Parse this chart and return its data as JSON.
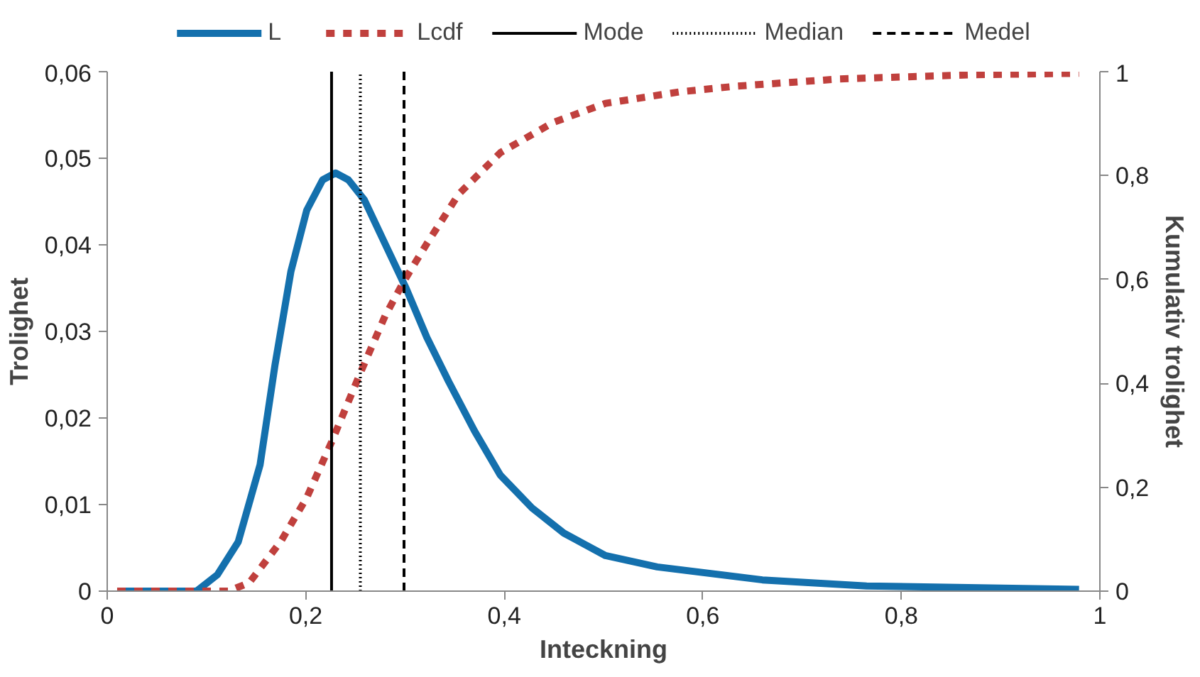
{
  "chart_data": {
    "type": "line",
    "xlabel": "Inteckning",
    "ylabel": "Trolighet",
    "y2label": "Kumulativ trolighet",
    "xlim": [
      0,
      1
    ],
    "ylim": [
      0,
      0.06
    ],
    "y2lim": [
      0,
      1
    ],
    "xticks": [
      0,
      {
        "value": 0.2,
        "label": "0,2"
      },
      {
        "value": 0.4,
        "label": "0,4"
      },
      {
        "value": 0.6,
        "label": "0,6"
      },
      {
        "value": 0.8,
        "label": "0,8"
      },
      1
    ],
    "yticks": [
      0,
      {
        "value": 0.01,
        "label": "0,01"
      },
      {
        "value": 0.02,
        "label": "0,02"
      },
      {
        "value": 0.03,
        "label": "0,03"
      },
      {
        "value": 0.04,
        "label": "0,04"
      },
      {
        "value": 0.05,
        "label": "0,05"
      },
      {
        "value": 0.06,
        "label": "0,06"
      }
    ],
    "y2ticks": [
      0,
      {
        "value": 0.2,
        "label": "0,2"
      },
      {
        "value": 0.4,
        "label": "0,4"
      },
      {
        "value": 0.6,
        "label": "0,6"
      },
      {
        "value": 0.8,
        "label": "0,8"
      },
      1
    ],
    "grid": false,
    "legend": "top",
    "marker": "none",
    "series": [
      {
        "name": "L",
        "color": "#1470ad",
        "line_style": "solid",
        "x": [
          0.01,
          0.09,
          0.111,
          0.132,
          0.154,
          0.169,
          0.185,
          0.201,
          0.217,
          0.23,
          0.243,
          0.259,
          0.28,
          0.301,
          0.322,
          0.344,
          0.37,
          0.396,
          0.428,
          0.46,
          0.502,
          0.554,
          0.66,
          0.765,
          0.979
        ],
        "values": [
          0,
          0,
          0.0019,
          0.0057,
          0.0146,
          0.0261,
          0.0369,
          0.044,
          0.0475,
          0.0483,
          0.0475,
          0.0452,
          0.0401,
          0.035,
          0.0293,
          0.0242,
          0.0185,
          0.0134,
          0.0096,
          0.0067,
          0.0041,
          0.0028,
          0.0013,
          0.0006,
          0.0002
        ]
      },
      {
        "name": "Lcdf",
        "color": "#c0403d",
        "line_style": "dashed",
        "axis": "y2",
        "x": [
          0.01,
          0.122,
          0.143,
          0.175,
          0.201,
          0.226,
          0.255,
          0.28,
          0.299,
          0.322,
          0.354,
          0.396,
          0.449,
          0.502,
          0.576,
          0.633,
          0.738,
          0.87,
          0.979
        ],
        "values": [
          0,
          0,
          0.016,
          0.096,
          0.18,
          0.287,
          0.42,
          0.53,
          0.597,
          0.669,
          0.764,
          0.844,
          0.902,
          0.939,
          0.961,
          0.972,
          0.986,
          0.994,
          0.997
        ]
      }
    ],
    "ref_lines": [
      {
        "axis": "x",
        "value": 0.226,
        "label": "Mode",
        "color": "#000000",
        "line_style": "solid"
      },
      {
        "axis": "x",
        "value": 0.255,
        "label": "Median",
        "color": "#000000",
        "line_style": "dotted"
      },
      {
        "axis": "x",
        "value": 0.299,
        "label": "Medel",
        "color": "#000000",
        "line_style": "dashed"
      }
    ]
  }
}
